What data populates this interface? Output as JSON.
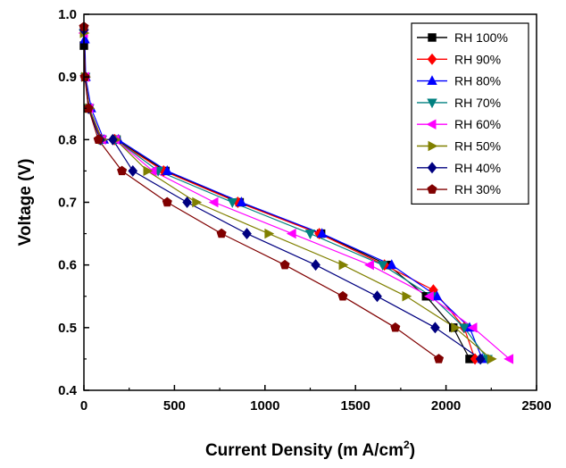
{
  "chart_data": {
    "type": "line",
    "xlabel": "Current Density (m A/cm",
    "xlabel_sup": "2",
    "xlabel_close": ")",
    "ylabel": "Voltage (V)",
    "xlim": [
      0,
      2500
    ],
    "ylim": [
      0.4,
      1.0
    ],
    "xticks": [
      "0",
      "500",
      "1000",
      "1500",
      "2000",
      "2500"
    ],
    "yticks": [
      "0.4",
      "0.5",
      "0.6",
      "0.7",
      "0.8",
      "0.9",
      "1.0"
    ],
    "grid": false,
    "legend_position": "top-right",
    "series": [
      {
        "name": "RH 100%",
        "color": "#000000",
        "marker": "square",
        "x": [
          0,
          8,
          25,
          100,
          180,
          450,
          860,
          1310,
          1680,
          1890,
          2040,
          2130
        ],
        "y": [
          0.95,
          0.9,
          0.85,
          0.8,
          0.8,
          0.75,
          0.7,
          0.65,
          0.6,
          0.55,
          0.5,
          0.45
        ]
      },
      {
        "name": "RH 90%",
        "color": "#ff0000",
        "marker": "diamond",
        "x": [
          0,
          8,
          25,
          95,
          170,
          440,
          850,
          1300,
          1660,
          1930,
          2100,
          2160
        ],
        "y": [
          0.975,
          0.9,
          0.85,
          0.8,
          0.8,
          0.75,
          0.7,
          0.65,
          0.6,
          0.56,
          0.5,
          0.45
        ]
      },
      {
        "name": "RH 80%",
        "color": "#0000ff",
        "marker": "triangle-up",
        "x": [
          5,
          10,
          40,
          110,
          190,
          460,
          870,
          1315,
          1700,
          1950,
          2130,
          2200
        ],
        "y": [
          0.96,
          0.9,
          0.85,
          0.8,
          0.8,
          0.75,
          0.7,
          0.65,
          0.6,
          0.55,
          0.5,
          0.45
        ]
      },
      {
        "name": "RH 70%",
        "color": "#008080",
        "marker": "triangle-down",
        "x": [
          0,
          8,
          30,
          100,
          175,
          410,
          820,
          1250,
          1650,
          1920,
          2100,
          2230
        ],
        "y": [
          0.97,
          0.9,
          0.85,
          0.8,
          0.8,
          0.75,
          0.7,
          0.65,
          0.6,
          0.55,
          0.5,
          0.45
        ]
      },
      {
        "name": "RH 60%",
        "color": "#ff00ff",
        "marker": "triangle-left",
        "x": [
          0,
          8,
          30,
          100,
          175,
          380,
          720,
          1150,
          1580,
          1910,
          2150,
          2350
        ],
        "y": [
          0.97,
          0.9,
          0.85,
          0.8,
          0.8,
          0.75,
          0.7,
          0.65,
          0.6,
          0.55,
          0.5,
          0.45
        ]
      },
      {
        "name": "RH 50%",
        "color": "#808000",
        "marker": "triangle-right",
        "x": [
          0,
          8,
          30,
          100,
          175,
          350,
          620,
          1020,
          1430,
          1780,
          2050,
          2250
        ],
        "y": [
          0.97,
          0.9,
          0.85,
          0.8,
          0.8,
          0.75,
          0.7,
          0.65,
          0.6,
          0.55,
          0.5,
          0.45
        ]
      },
      {
        "name": "RH 40%",
        "color": "#000080",
        "marker": "diamond",
        "x": [
          0,
          8,
          25,
          90,
          160,
          270,
          570,
          900,
          1280,
          1620,
          1940,
          2190
        ],
        "y": [
          0.975,
          0.9,
          0.85,
          0.8,
          0.8,
          0.75,
          0.7,
          0.65,
          0.6,
          0.55,
          0.5,
          0.45
        ]
      },
      {
        "name": "RH 30%",
        "color": "#800000",
        "marker": "pentagon",
        "x": [
          0,
          5,
          25,
          80,
          210,
          460,
          760,
          1110,
          1430,
          1720,
          1960
        ],
        "y": [
          0.98,
          0.9,
          0.85,
          0.8,
          0.75,
          0.7,
          0.65,
          0.6,
          0.55,
          0.5,
          0.45
        ]
      }
    ]
  }
}
